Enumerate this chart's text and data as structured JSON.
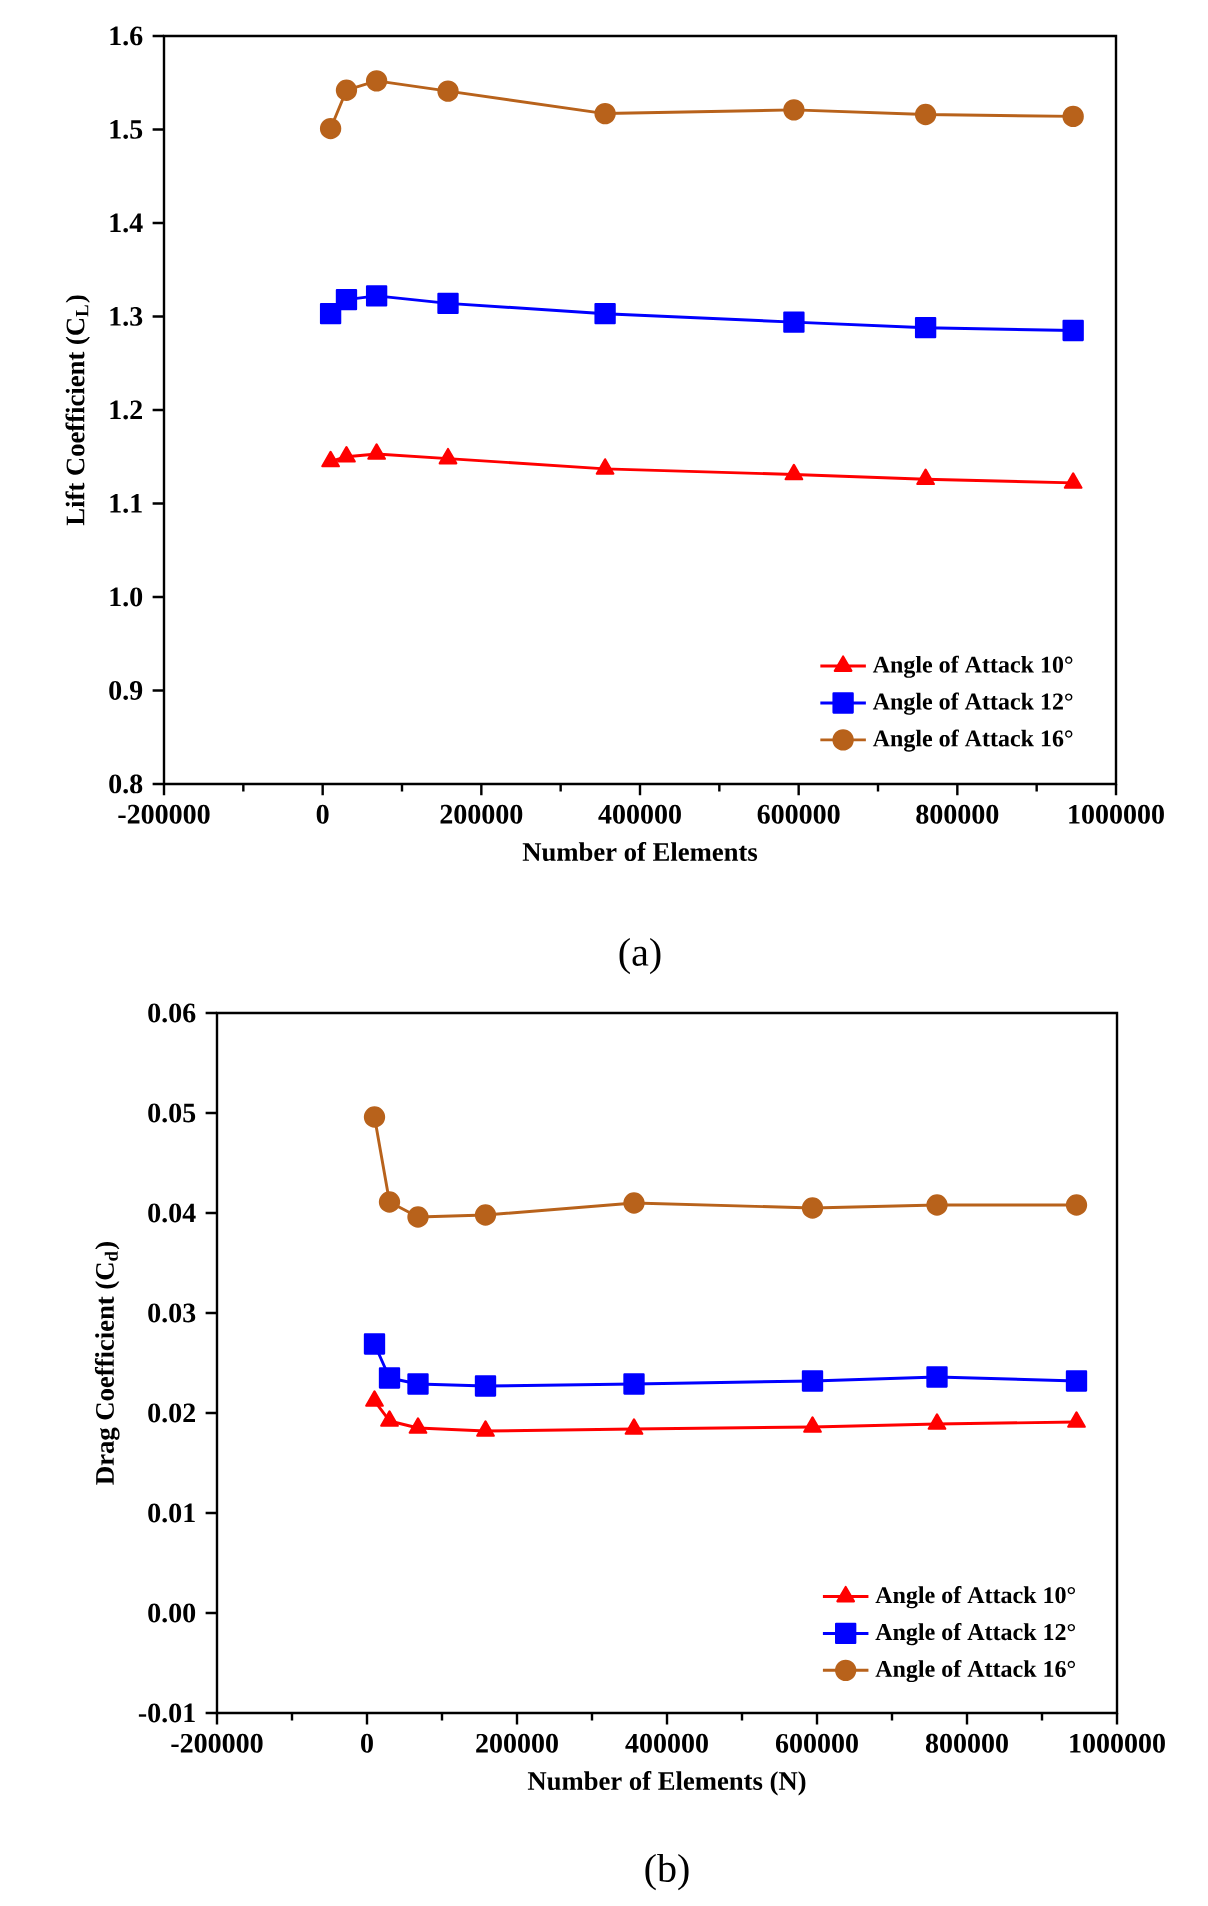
{
  "chart_data": [
    {
      "type": "line",
      "xlabel": "Number of Elements",
      "ylabel": "Lift Coefficient (C$_{L}$)",
      "annotations": [
        "(a)"
      ],
      "x": [
        10000,
        30000,
        68000,
        158000,
        356000,
        594000,
        760000,
        946000
      ],
      "xlim": [
        -200000,
        1000000
      ],
      "xticks": [
        -200000,
        0,
        200000,
        400000,
        600000,
        800000,
        1000000
      ],
      "ylim": [
        0.8,
        1.6
      ],
      "yticks": [
        {
          "value": 0.8,
          "label": "0.8"
        },
        {
          "value": 0.9,
          "label": "0.9"
        },
        {
          "value": 1.0,
          "label": "1.0"
        },
        {
          "value": 1.1,
          "label": "1.1"
        },
        {
          "value": 1.2,
          "label": "1.2"
        },
        {
          "value": 1.3,
          "label": "1.3"
        },
        {
          "value": 1.4,
          "label": "1.4"
        },
        {
          "value": 1.5,
          "label": "1.5"
        },
        {
          "value": 1.6,
          "label": "1.6"
        }
      ],
      "legend": "bottom right",
      "line_style": "solid",
      "series": [
        {
          "name": "Angle of Attack 10°",
          "color": "#ff0000",
          "marker": "triangle",
          "values": [
            1.145,
            1.15,
            1.153,
            1.148,
            1.137,
            1.131,
            1.126,
            1.122
          ]
        },
        {
          "name": "Angle of Attack 12°",
          "color": "#0000ff",
          "marker": "square",
          "values": [
            1.303,
            1.318,
            1.322,
            1.314,
            1.303,
            1.294,
            1.288,
            1.285
          ]
        },
        {
          "name": "Angle of Attack 16°",
          "color": "#b8621b",
          "marker": "circle",
          "values": [
            1.501,
            1.542,
            1.552,
            1.541,
            1.517,
            1.521,
            1.516,
            1.514
          ]
        }
      ]
    },
    {
      "type": "line",
      "xlabel": "Number of Elements (N)",
      "ylabel": "Drag Coefficient (C$_{d}$)",
      "annotations": [
        "(b)"
      ],
      "x": [
        10000,
        30000,
        68000,
        158000,
        356000,
        594000,
        760000,
        946000
      ],
      "xlim": [
        -200000,
        1000000
      ],
      "xticks": [
        -200000,
        0,
        200000,
        400000,
        600000,
        800000,
        1000000
      ],
      "ylim": [
        -0.01,
        0.06
      ],
      "yticks": [
        {
          "value": -0.01,
          "label": "-0.01"
        },
        {
          "value": 0,
          "label": "0.00"
        },
        {
          "value": 0.01,
          "label": "0.01"
        },
        {
          "value": 0.02,
          "label": "0.02"
        },
        {
          "value": 0.03,
          "label": "0.03"
        },
        {
          "value": 0.04,
          "label": "0.04"
        },
        {
          "value": 0.05,
          "label": "0.05"
        },
        {
          "value": 0.06,
          "label": "0.06"
        }
      ],
      "legend": "bottom right",
      "line_style": "solid",
      "series": [
        {
          "name": "Angle of Attack 10°",
          "color": "#ff0000",
          "marker": "triangle",
          "values": [
            0.0212,
            0.0192,
            0.0185,
            0.0182,
            0.0184,
            0.0186,
            0.0189,
            0.0191
          ]
        },
        {
          "name": "Angle of Attack 12°",
          "color": "#0000ff",
          "marker": "square",
          "values": [
            0.0269,
            0.0235,
            0.0229,
            0.0227,
            0.0229,
            0.0232,
            0.0236,
            0.0232
          ]
        },
        {
          "name": "Angle of Attack 16°",
          "color": "#b8621b",
          "marker": "circle",
          "values": [
            0.0496,
            0.0411,
            0.0396,
            0.0398,
            0.041,
            0.0405,
            0.0408,
            0.0408
          ]
        }
      ]
    }
  ]
}
